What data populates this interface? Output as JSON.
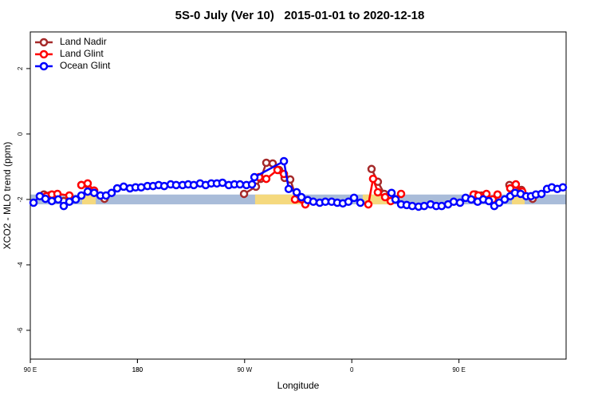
{
  "chart_data": {
    "type": "line",
    "title": "5S-0 July (Ver 10)   2015-01-01 to 2020-12-18",
    "x_label": "Longitude",
    "y_label": "XCO2 - MLO trend (ppm)",
    "xlim": [
      90,
      540
    ],
    "ylim": [
      -6.88,
      3.12
    ],
    "xticks": [
      {
        "value": 90,
        "label": "90 E"
      },
      180,
      {
        "value": 270,
        "label": "90 W"
      },
      {
        "value": 360,
        "label": "0"
      },
      {
        "value": 450,
        "label": "90 E"
      },
      180.0001
    ],
    "yticks": [
      -6,
      -4,
      -2,
      0,
      2
    ],
    "legend": "top-left",
    "band": {
      "range": [
        -2.15,
        -1.85
      ],
      "color": "#a9bcd9",
      "land_color": "#f5d97e",
      "land_spans": [
        [
          133.5,
          145
        ],
        [
          278.8,
          317.7
        ],
        [
          369.2,
          392.7
        ],
        [
          494.5,
          505.2
        ]
      ]
    },
    "series": [
      {
        "name": "Land Nadir",
        "color": "#a52a2a",
        "x": [
          101.4,
          106.1,
          118.1,
          null,
          132.9,
          143.6,
          152.3,
          null,
          269.5,
          279.5,
          283.5,
          288.2,
          293.6,
          298.9,
          303.6,
          308.3,
          313.7,
          null,
          376.6,
          381.9,
          387.3,
          392.7,
          396.7,
          null,
          463.7,
          469.0,
          null,
          492.4,
          502.5,
          511.9
        ],
        "values": [
          -1.85,
          -1.88,
          -2.05,
          null,
          -1.56,
          -1.73,
          -1.98,
          null,
          -1.83,
          -1.61,
          -1.37,
          -0.88,
          -0.9,
          -1.1,
          -1.34,
          -1.39,
          -1.98,
          null,
          -1.07,
          -1.46,
          -1.83,
          -1.9,
          -2.0,
          null,
          -1.85,
          -1.88,
          null,
          -1.56,
          -1.71,
          -1.98
        ]
      },
      {
        "name": "Land Glint",
        "color": "#ff0000",
        "x": [
          103.4,
          108.1,
          112.8,
          122.8,
          null,
          132.9,
          138.2,
          143.6,
          null,
          282.2,
          288.2,
          297.6,
          303.0,
          null,
          312.3,
          321.0,
          null,
          373.9,
          377.9,
          381.9,
          388.0,
          392.7,
          401.4,
          null,
          462.3,
          466.3,
          473.1,
          478.4,
          482.4,
          null,
          493.1,
          497.8,
          503.2
        ],
        "values": [
          -1.9,
          -1.85,
          -1.83,
          -1.88,
          null,
          -1.56,
          -1.51,
          -1.73,
          null,
          -1.32,
          -1.37,
          -1.1,
          -1.22,
          null,
          -2.0,
          -2.15,
          null,
          -2.15,
          -1.37,
          -1.78,
          -1.93,
          -2.05,
          -1.83,
          null,
          -1.85,
          -1.88,
          -1.83,
          -2.0,
          -1.85,
          null,
          -1.66,
          -1.54,
          -1.76
        ]
      },
      {
        "name": "Ocean Glint",
        "color": "#0000ff",
        "x": [
          92.7,
          98.0,
          102.7,
          108.1,
          113.4,
          118.1,
          122.8,
          128.2,
          132.9,
          138.2,
          143.6,
          148.9,
          153.6,
          158.3,
          163.0,
          168.4,
          173.7,
          178.4,
          183.1,
          188.4,
          193.1,
          197.8,
          202.5,
          207.9,
          212.5,
          217.9,
          222.6,
          227.3,
          232.6,
          237.3,
          242.0,
          246.7,
          251.4,
          256.7,
          261.4,
          266.1,
          271.5,
          276.2,
          278.2,
          303.0,
          307.0,
          313.7,
          317.7,
          323.0,
          327.7,
          333.1,
          337.8,
          343.1,
          347.8,
          352.5,
          357.2,
          361.9,
          367.2,
          null,
          393.4,
          396.7,
          401.4,
          406.1,
          410.8,
          416.1,
          420.8,
          426.2,
          430.9,
          435.5,
          440.9,
          445.6,
          450.9,
          455.6,
          460.3,
          465.7,
          470.4,
          475.1,
          479.7,
          483.8,
          488.4,
          493.1,
          497.1,
          501.8,
          506.5,
          510.5,
          514.6,
          519.3,
          524.0,
          528.0,
          532.6,
          537.3
        ],
        "values": [
          -2.1,
          -1.9,
          -1.98,
          -2.05,
          -2.0,
          -2.2,
          -2.07,
          -2.0,
          -1.88,
          -1.76,
          -1.8,
          -1.88,
          -1.88,
          -1.8,
          -1.66,
          -1.61,
          -1.66,
          -1.63,
          -1.63,
          -1.59,
          -1.59,
          -1.56,
          -1.59,
          -1.54,
          -1.56,
          -1.56,
          -1.54,
          -1.56,
          -1.51,
          -1.56,
          -1.51,
          -1.51,
          -1.49,
          -1.56,
          -1.54,
          -1.54,
          -1.56,
          -1.54,
          -1.32,
          -0.83,
          -1.68,
          -1.78,
          -1.93,
          -2.02,
          -2.07,
          -2.1,
          -2.07,
          -2.07,
          -2.1,
          -2.12,
          -2.07,
          -1.95,
          -2.1,
          null,
          -1.8,
          -2.0,
          -2.15,
          -2.17,
          -2.2,
          -2.22,
          -2.2,
          -2.15,
          -2.2,
          -2.2,
          -2.15,
          -2.07,
          -2.1,
          -1.95,
          -2.0,
          -2.07,
          -2.0,
          -2.05,
          -2.2,
          -2.1,
          -2.0,
          -1.9,
          -1.8,
          -1.83,
          -1.9,
          -1.9,
          -1.85,
          -1.83,
          -1.68,
          -1.63,
          -1.68,
          -1.63
        ]
      }
    ]
  }
}
